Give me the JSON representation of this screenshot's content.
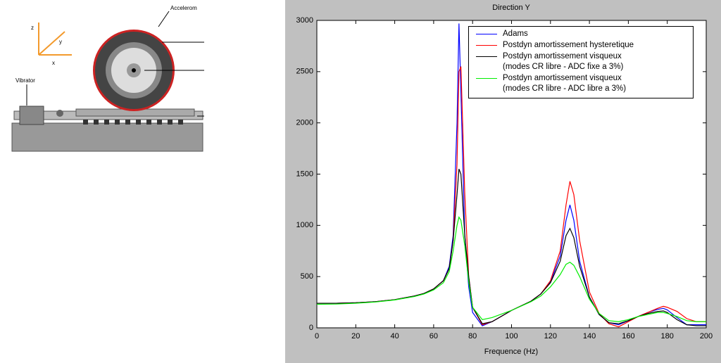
{
  "diagram": {
    "labels": [
      "Accelerom",
      "Vibrator",
      "z",
      "y",
      "x"
    ]
  },
  "chart_data": {
    "type": "line",
    "title": "Direction Y",
    "xlabel": "Frequence (Hz)",
    "x": [
      0,
      10,
      20,
      30,
      40,
      50,
      55,
      60,
      65,
      68,
      70,
      72,
      73,
      74,
      76,
      78,
      80,
      85,
      90,
      100,
      110,
      115,
      120,
      125,
      128,
      130,
      132,
      135,
      140,
      145,
      150,
      155,
      160,
      165,
      170,
      175,
      178,
      180,
      185,
      190,
      195,
      200
    ],
    "series": [
      {
        "name": "Adams",
        "color": "#0000ff",
        "values": [
          240,
          240,
          245,
          255,
          275,
          310,
          335,
          380,
          460,
          600,
          900,
          2000,
          2970,
          2300,
          900,
          400,
          150,
          20,
          60,
          170,
          260,
          330,
          450,
          700,
          1050,
          1200,
          1050,
          650,
          300,
          130,
          50,
          30,
          70,
          110,
          150,
          180,
          190,
          175,
          100,
          30,
          30,
          30
        ]
      },
      {
        "name": "Postdyn amortissement hysteretique",
        "color": "#ff0000",
        "values": [
          240,
          240,
          245,
          255,
          275,
          310,
          335,
          380,
          460,
          580,
          850,
          1600,
          2500,
          2550,
          1300,
          500,
          200,
          30,
          60,
          170,
          260,
          330,
          460,
          750,
          1200,
          1430,
          1300,
          850,
          350,
          140,
          40,
          10,
          60,
          110,
          150,
          190,
          210,
          200,
          160,
          90,
          60,
          60
        ]
      },
      {
        "name": "Postdyn amortissement visqueux\n(modes CR libre - ADC fixe a 3%)",
        "color": "#000000",
        "values": [
          240,
          240,
          245,
          255,
          275,
          310,
          335,
          380,
          460,
          580,
          850,
          1300,
          1550,
          1500,
          900,
          500,
          200,
          40,
          60,
          170,
          260,
          330,
          440,
          650,
          900,
          970,
          880,
          600,
          300,
          130,
          50,
          40,
          70,
          110,
          140,
          160,
          165,
          150,
          80,
          30,
          20,
          20
        ]
      },
      {
        "name": "Postdyn amortissement visqueux\n(modes CR libre - ADC libre a 3%)",
        "color": "#00ee00",
        "values": [
          230,
          232,
          240,
          252,
          272,
          305,
          330,
          370,
          440,
          550,
          750,
          1000,
          1080,
          1050,
          800,
          450,
          200,
          80,
          100,
          170,
          255,
          310,
          400,
          520,
          620,
          640,
          610,
          500,
          280,
          140,
          70,
          60,
          80,
          110,
          130,
          150,
          150,
          140,
          110,
          70,
          60,
          60
        ]
      }
    ],
    "xlim": [
      0,
      200
    ],
    "xticks": [
      0,
      20,
      40,
      60,
      80,
      100,
      120,
      140,
      160,
      180,
      200
    ],
    "ylim": [
      0,
      3000
    ],
    "yticks": [
      0,
      500,
      1000,
      1500,
      2000,
      2500,
      3000
    ],
    "legend": "upper-right"
  }
}
